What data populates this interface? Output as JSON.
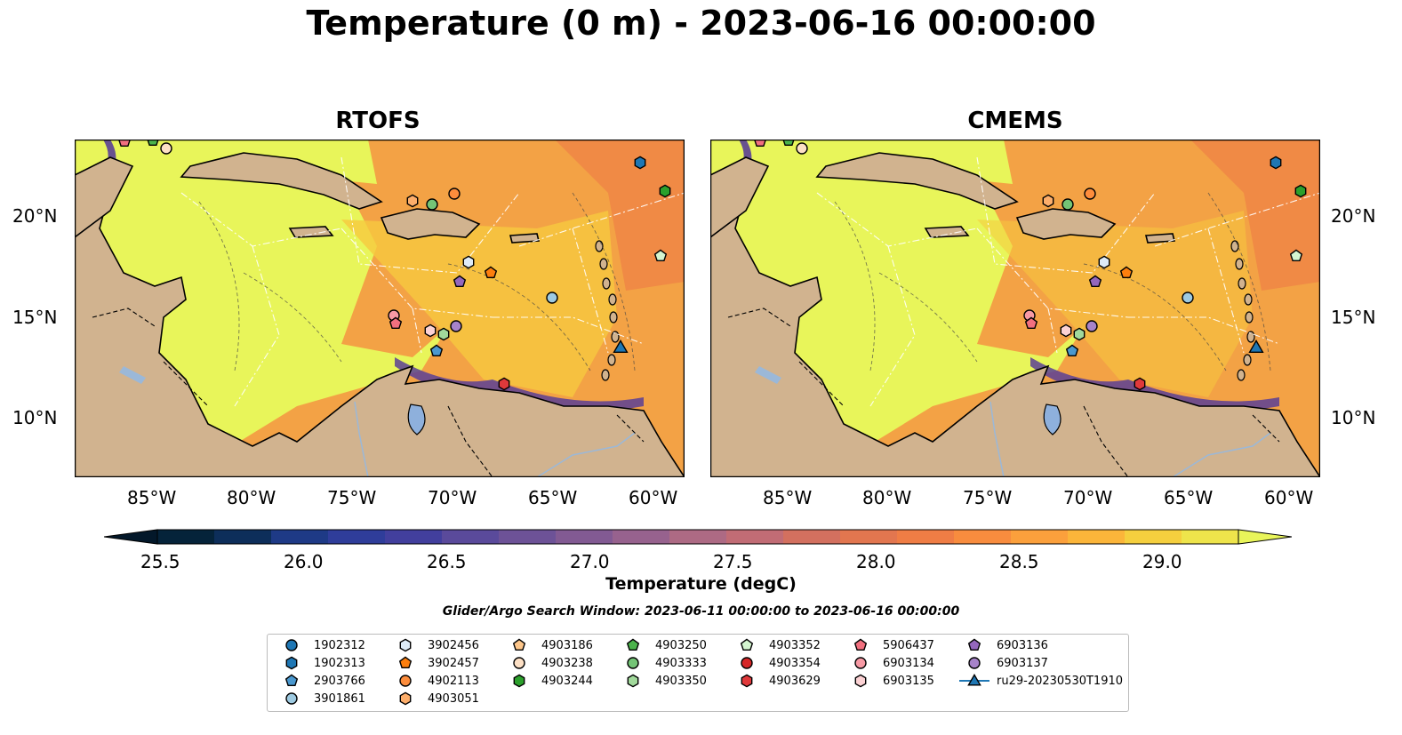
{
  "figure": {
    "title": "Temperature (0 m) - 2023-06-16 00:00:00",
    "panels": [
      {
        "title": "RTOFS",
        "y_ticks_side": "left"
      },
      {
        "title": "CMEMS",
        "y_ticks_side": "right"
      }
    ],
    "x_ticks": [
      "85°W",
      "80°W",
      "75°W",
      "70°W",
      "65°W",
      "60°W"
    ],
    "y_ticks": [
      "20°N",
      "15°N",
      "10°N"
    ],
    "colorbar": {
      "label": "Temperature (degC)",
      "ticks": [
        "25.5",
        "26.0",
        "26.5",
        "27.0",
        "27.5",
        "28.0",
        "28.5",
        "29.0"
      ],
      "colors": [
        "#05233a",
        "#0d2e5a",
        "#1e3a86",
        "#2f3d9a",
        "#423f9d",
        "#5a4a9b",
        "#6d5297",
        "#825a93",
        "#97628e",
        "#ad6a84",
        "#c16c75",
        "#d3705f",
        "#e2764f",
        "#ef7d45",
        "#f88c3e",
        "#fba03c",
        "#fbb53a",
        "#f5cf3e",
        "#eee44b"
      ],
      "extend_low": "#03182a",
      "extend_high": "#e9f55a"
    },
    "search_window": "Glider/Argo Search Window: 2023-06-11 00:00:00 to 2023-06-16 00:00:00",
    "legend": [
      {
        "label": "1902312",
        "color": "#1f77b4",
        "marker": "circle"
      },
      {
        "label": "1902313",
        "color": "#1f77b4",
        "marker": "hexagon"
      },
      {
        "label": "2903766",
        "color": "#4a98cf",
        "marker": "pentagon"
      },
      {
        "label": "3901861",
        "color": "#9ecae1",
        "marker": "circle"
      },
      {
        "label": "3902456",
        "color": "#deebf7",
        "marker": "hexagon"
      },
      {
        "label": "3902457",
        "color": "#fd7f0e",
        "marker": "pentagon"
      },
      {
        "label": "4902113",
        "color": "#fd8d3c",
        "marker": "circle"
      },
      {
        "label": "4903051",
        "color": "#fdae6b",
        "marker": "hexagon"
      },
      {
        "label": "4903186",
        "color": "#fdc68a",
        "marker": "pentagon"
      },
      {
        "label": "4903238",
        "color": "#fde0c5",
        "marker": "circle"
      },
      {
        "label": "4903244",
        "color": "#2ca02c",
        "marker": "hexagon"
      },
      {
        "label": "4903250",
        "color": "#4bb34b",
        "marker": "pentagon"
      },
      {
        "label": "4903333",
        "color": "#74c476",
        "marker": "circle"
      },
      {
        "label": "4903350",
        "color": "#a1d99b",
        "marker": "hexagon"
      },
      {
        "label": "4903352",
        "color": "#d4f5d0",
        "marker": "pentagon"
      },
      {
        "label": "4903354",
        "color": "#d62728",
        "marker": "circle"
      },
      {
        "label": "4903629",
        "color": "#e0393b",
        "marker": "hexagon"
      },
      {
        "label": "5906437",
        "color": "#f2707f",
        "marker": "pentagon"
      },
      {
        "label": "6903134",
        "color": "#f79aa5",
        "marker": "circle"
      },
      {
        "label": "6903135",
        "color": "#fcd2d4",
        "marker": "hexagon"
      },
      {
        "label": "6903136",
        "color": "#9467bd",
        "marker": "pentagon"
      },
      {
        "label": "6903137",
        "color": "#a783c9",
        "marker": "circle"
      },
      {
        "label": "ru29-20230530T1910",
        "color": "#1f77b4",
        "marker": "triangle-line"
      }
    ],
    "map_colors": {
      "land": "#d1b38f",
      "lake": "#8eb0dc",
      "river": "#9bb8d8",
      "sea_warm": "#e8f55a",
      "sea_mid": "#f6c93e",
      "sea_hot": "#f3a245",
      "sea_deep": "#f08a45",
      "cold": "#5a3f95"
    }
  }
}
